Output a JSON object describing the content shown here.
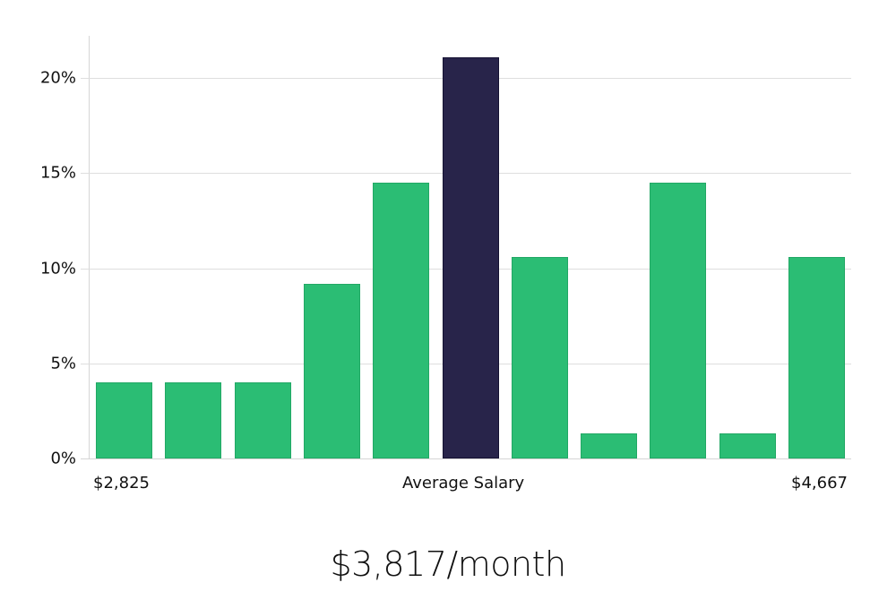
{
  "chart_data": {
    "type": "bar",
    "title": "",
    "xlabel": "Average Salary",
    "ylabel": "",
    "ylim": [
      0,
      22
    ],
    "yticks": [
      "0%",
      "5%",
      "10%",
      "15%",
      "20%"
    ],
    "ytick_values": [
      0,
      5,
      10,
      15,
      20
    ],
    "grid": true,
    "categories": [
      "bin1",
      "bin2",
      "bin3",
      "bin4",
      "bin5",
      "bin6",
      "bin7",
      "bin8",
      "bin9",
      "bin10",
      "bin11"
    ],
    "values": [
      4.0,
      4.0,
      4.0,
      9.2,
      14.5,
      21.1,
      10.6,
      1.3,
      14.5,
      1.3,
      10.6
    ],
    "highlight_index": 5,
    "x_range_labels": {
      "min": "$2,825",
      "center": "Average Salary",
      "max": "$4,667"
    },
    "colors": {
      "bar": "#2bbd74",
      "bar_border": "#22a865",
      "highlight": "#28244a",
      "highlight_border": "#151233",
      "grid": "#dedede"
    }
  },
  "labels": {
    "min_salary": "$2,825",
    "axis_title": "Average Salary",
    "max_salary": "$4,667",
    "headline": "$3,817/month"
  }
}
